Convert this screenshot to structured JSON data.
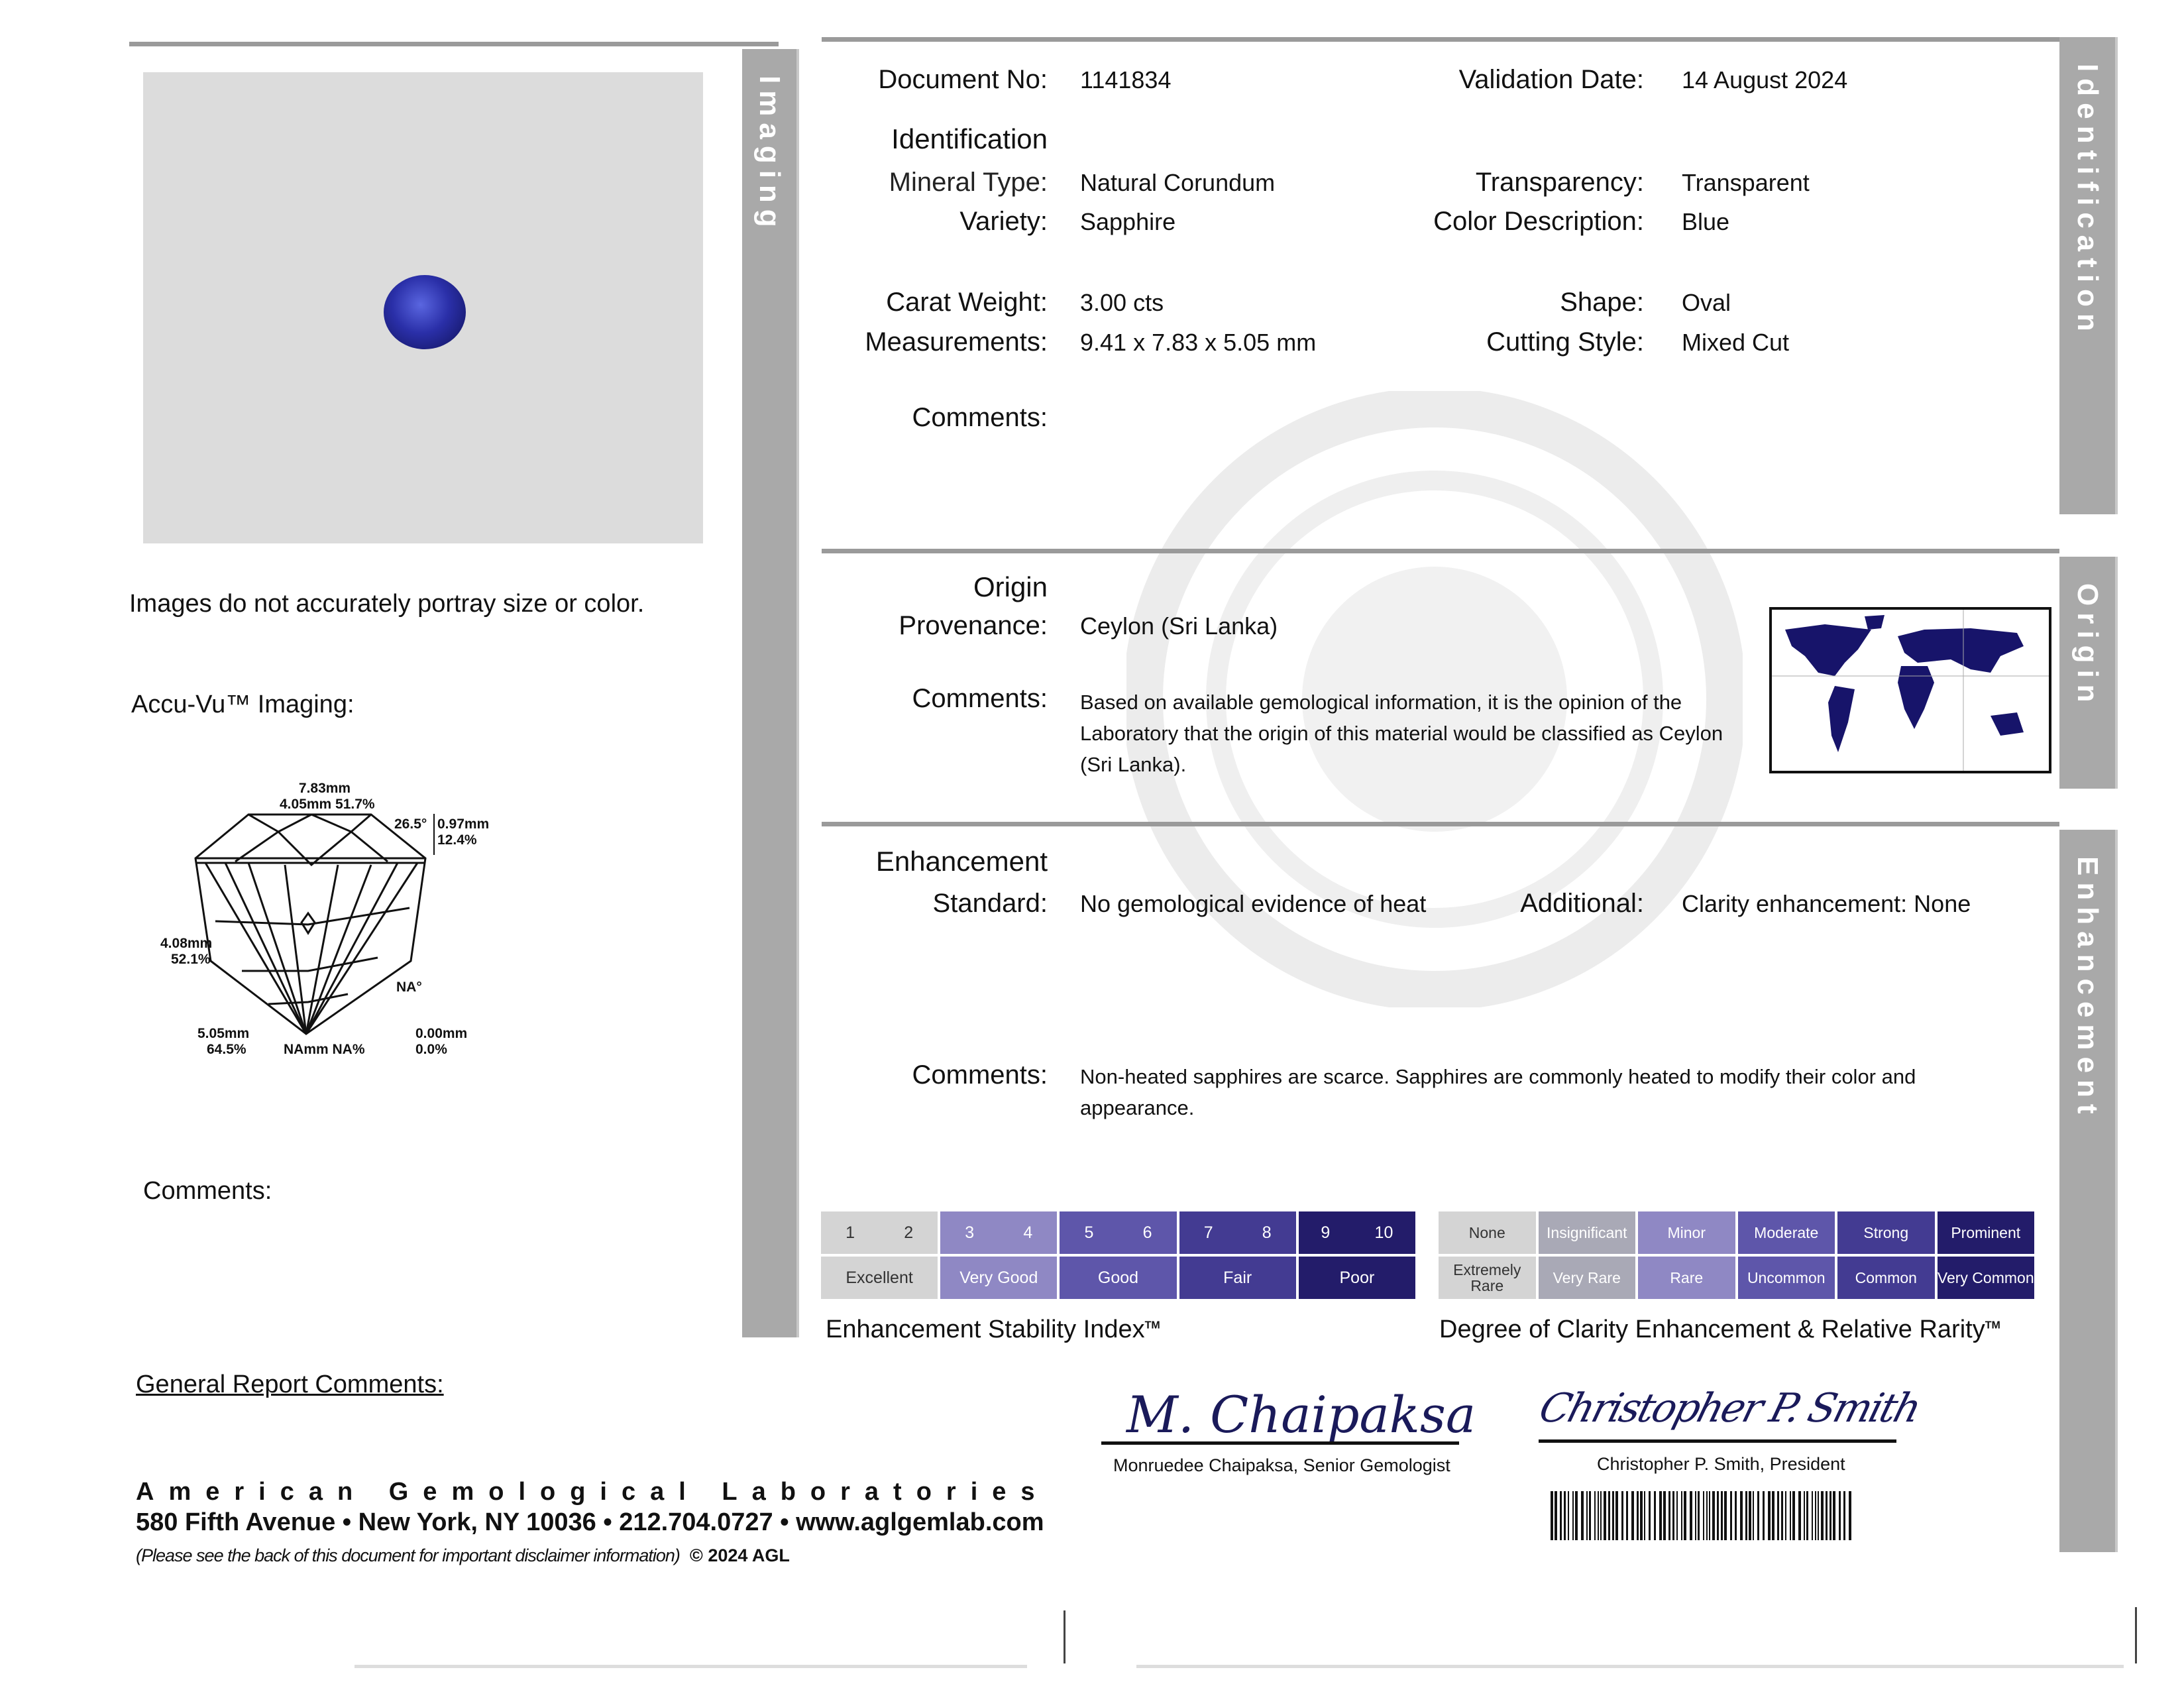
{
  "imaging": {
    "tab_label": "Imaging",
    "disclaimer": "Images do not accurately portray size or color.",
    "accuvu_label": "Accu-Vu™ Imaging:",
    "comments_label": "Comments:",
    "gem_color": "#2a2fa8",
    "diagram": {
      "width_mm": "7.83mm",
      "table": "4.05mm 51.7%",
      "crown_angle": "26.5°",
      "crown_height": "0.97mm",
      "crown_height_pct": "12.4%",
      "pavilion_depth": "4.08mm",
      "pavilion_depth_pct": "52.1%",
      "pavilion_angle": "NA°",
      "total_depth": "5.05mm",
      "total_depth_pct": "64.5%",
      "culet": "NAmm NA%",
      "girdle": "0.00mm",
      "girdle_pct": "0.0%"
    }
  },
  "general_comments_label": "General Report Comments:",
  "footer": {
    "lab_name": "American Gemological Laboratories",
    "address": "580 Fifth Avenue • New York, NY 10036 • 212.704.0727 • www.aglgemlab.com",
    "disclaimer": "(Please see the back of this document for important disclaimer information)",
    "copyright": "© 2024 AGL"
  },
  "identification": {
    "tab_label": "Identification",
    "document_no_label": "Document No:",
    "document_no": "1141834",
    "validation_date_label": "Validation Date:",
    "validation_date": "14 August 2024",
    "heading": "Identification",
    "mineral_type_label": "Mineral Type:",
    "mineral_type": "Natural Corundum",
    "variety_label": "Variety:",
    "variety": "Sapphire",
    "transparency_label": "Transparency:",
    "transparency": "Transparent",
    "color_label": "Color Description:",
    "color": "Blue",
    "carat_label": "Carat Weight:",
    "carat": "3.00 cts",
    "measurements_label": "Measurements:",
    "measurements": "9.41 x 7.83 x 5.05 mm",
    "shape_label": "Shape:",
    "shape": "Oval",
    "cutting_label": "Cutting Style:",
    "cutting": "Mixed Cut",
    "comments_label": "Comments:"
  },
  "origin": {
    "tab_label": "Origin",
    "heading": "Origin",
    "provenance_label": "Provenance:",
    "provenance": "Ceylon (Sri Lanka)",
    "comments_label": "Comments:",
    "comments": "Based on available gemological information, it is the opinion of the Laboratory that the origin of this material would be classified as Ceylon (Sri Lanka)."
  },
  "enhancement": {
    "tab_label": "Enhancement",
    "heading": "Enhancement",
    "standard_label": "Standard:",
    "standard": "No gemological evidence of heat",
    "additional_label": "Additional:",
    "additional": "Clarity enhancement: None",
    "comments_label": "Comments:",
    "comments": "Non-heated sapphires are scarce. Sapphires are commonly heated to modify their color and appearance."
  },
  "stability_index": {
    "title": "Enhancement Stability Index",
    "tm": "TM",
    "groups": [
      {
        "numbers": [
          "1",
          "2"
        ],
        "label": "Excellent",
        "color": "#d4d4d4",
        "text": "#333"
      },
      {
        "numbers": [
          "3",
          "4"
        ],
        "label": "Very Good",
        "color": "#8f88c4",
        "text": "#fff"
      },
      {
        "numbers": [
          "5",
          "6"
        ],
        "label": "Good",
        "color": "#5e56aa",
        "text": "#fff"
      },
      {
        "numbers": [
          "7",
          "8"
        ],
        "label": "Fair",
        "color": "#433b92",
        "text": "#fff"
      },
      {
        "numbers": [
          "9",
          "10"
        ],
        "label": "Poor",
        "color": "#231c6a",
        "text": "#fff"
      }
    ]
  },
  "clarity_rarity": {
    "title": "Degree of Clarity Enhancement & Relative Rarity",
    "tm": "TM",
    "columns": [
      {
        "degree": "None",
        "rarity": "Extremely Rare",
        "color": "#d4d4d4",
        "text": "#333"
      },
      {
        "degree": "Insignificant",
        "rarity": "Very Rare",
        "color": "#a9a9b6",
        "text": "#fff"
      },
      {
        "degree": "Minor",
        "rarity": "Rare",
        "color": "#8f88c4",
        "text": "#fff"
      },
      {
        "degree": "Moderate",
        "rarity": "Uncommon",
        "color": "#5e56aa",
        "text": "#fff"
      },
      {
        "degree": "Strong",
        "rarity": "Common",
        "color": "#433b92",
        "text": "#fff"
      },
      {
        "degree": "Prominent",
        "rarity": "Very Common",
        "color": "#231c6a",
        "text": "#fff"
      }
    ]
  },
  "signatures": {
    "sig1_name": "Monruedee Chaipaksa, Senior Gemologist",
    "sig1_script": "M. Chaipaksa",
    "sig2_name": "Christopher P. Smith, President",
    "sig2_script": "Christopher P. Smith"
  }
}
